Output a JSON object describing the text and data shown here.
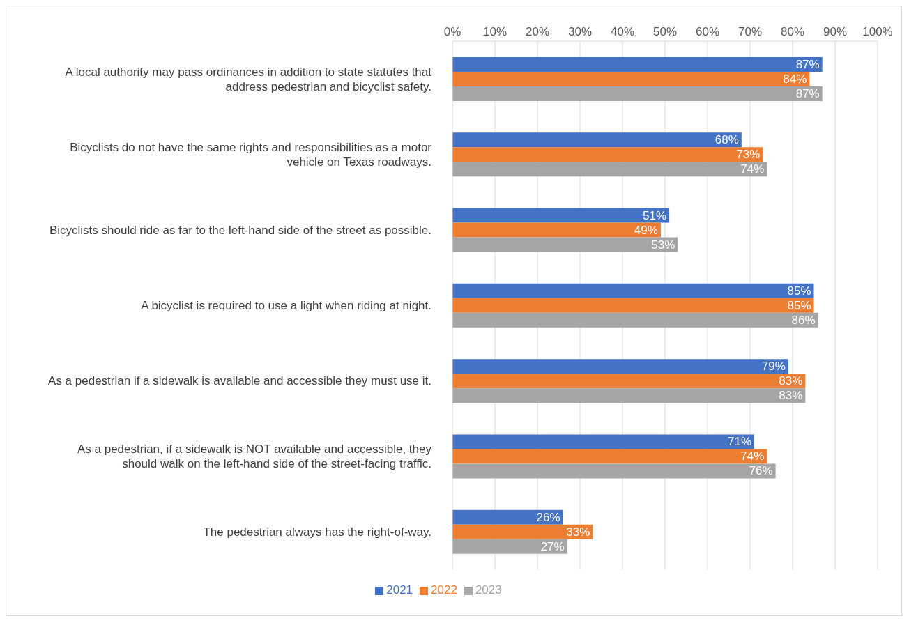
{
  "chart_data": {
    "type": "bar",
    "orientation": "horizontal",
    "categories": [
      "A local authority may pass ordinances in addition to state statutes that address pedestrian and bicyclist safety.",
      "Bicyclists do not have the same rights and responsibilities as a motor vehicle on Texas roadways.",
      "Bicyclists should ride as far to the left-hand side of the street as possible.",
      "A bicyclist is required to use a light when riding at night.",
      "As a pedestrian if a sidewalk is available and accessible they must use it.",
      "As a pedestrian, if a sidewalk is NOT available and accessible, they should walk on the left-hand side of the street-facing traffic.",
      "The pedestrian always has the right-of-way."
    ],
    "series": [
      {
        "name": "2021",
        "color": "#4472c4",
        "values": [
          87,
          68,
          51,
          85,
          79,
          71,
          26
        ],
        "value_labels": [
          "87%",
          "68%",
          "51%",
          "85%",
          "79%",
          "71%",
          "26%"
        ]
      },
      {
        "name": "2022",
        "color": "#ed7d31",
        "values": [
          84,
          73,
          49,
          85,
          83,
          74,
          33
        ],
        "value_labels": [
          "84%",
          "73%",
          "49%",
          "85%",
          "83%",
          "74%",
          "33%"
        ]
      },
      {
        "name": "2023",
        "color": "#a5a5a5",
        "values": [
          87,
          74,
          53,
          86,
          83,
          76,
          27
        ],
        "value_labels": [
          "87%",
          "74%",
          "53%",
          "86%",
          "83%",
          "76%",
          "27%"
        ]
      }
    ],
    "xlim": [
      0,
      100
    ],
    "xticks": [
      {
        "value": 0,
        "label": "0%"
      },
      {
        "value": 10,
        "label": "10%"
      },
      {
        "value": 20,
        "label": "20%"
      },
      {
        "value": 30,
        "label": "30%"
      },
      {
        "value": 40,
        "label": "40%"
      },
      {
        "value": 50,
        "label": "50%"
      },
      {
        "value": 60,
        "label": "60%"
      },
      {
        "value": 70,
        "label": "70%"
      },
      {
        "value": 80,
        "label": "80%"
      },
      {
        "value": 90,
        "label": "90%"
      },
      {
        "value": 100,
        "label": "100%"
      }
    ],
    "grid": "x",
    "legend": "bottom"
  }
}
